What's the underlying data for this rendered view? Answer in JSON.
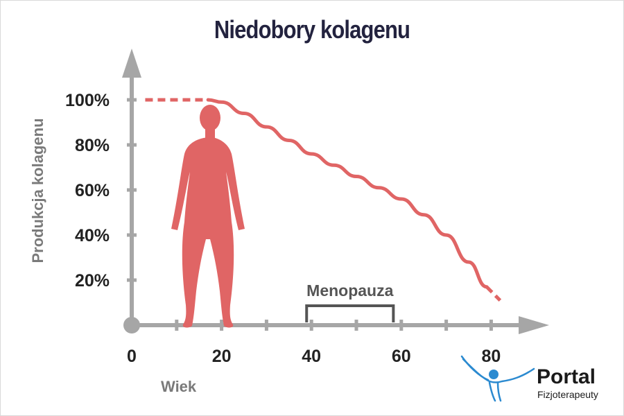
{
  "chart_data": {
    "type": "line",
    "title": "Niedobory kolagenu",
    "xlabel": "Wiek",
    "ylabel": "Produkcja kolagenu",
    "x_ticks": [
      0,
      20,
      40,
      60,
      80
    ],
    "y_ticks": [
      "20%",
      "40%",
      "60%",
      "80%",
      "100%"
    ],
    "xlim": [
      0,
      88
    ],
    "ylim": [
      0,
      100
    ],
    "series": [
      {
        "x": [
          3,
          10,
          17,
          20,
          25,
          30,
          35,
          40,
          45,
          50,
          55,
          60,
          65,
          70,
          75,
          79
        ],
        "values": [
          100,
          100,
          100,
          99,
          94,
          88,
          82,
          76,
          71,
          66,
          61,
          56,
          49,
          40,
          28,
          17
        ],
        "color": "#e06565"
      }
    ],
    "dashed_segments": [
      {
        "x": [
          3,
          17
        ],
        "y": [
          100,
          100
        ]
      },
      {
        "x": [
          79,
          82
        ],
        "y": [
          17,
          11
        ]
      }
    ],
    "annotations": [
      {
        "text": "Menopauza",
        "x_start": 38,
        "x_end": 57
      }
    ],
    "grid": false,
    "axis_color": "#a6a6a6",
    "figure": "female-silhouette"
  },
  "logo": {
    "name": "Portal",
    "sub": "Fizjoterapeuty",
    "icon": "person-raised-arms-icon",
    "color": "#2b8ad0"
  }
}
